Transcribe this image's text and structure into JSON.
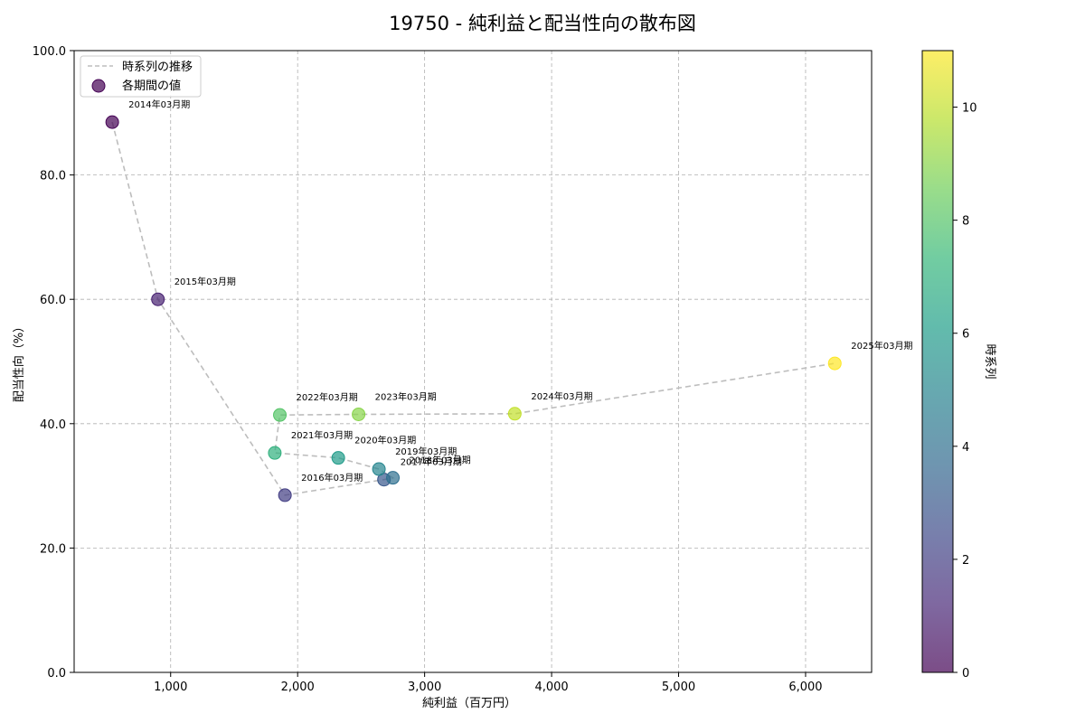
{
  "chart_data": {
    "type": "scatter",
    "title": "19750 - 純利益と配当性向の散布図",
    "xlabel": "純利益（百万円）",
    "ylabel": "配当性向（%）",
    "xlim": [
      240,
      6520
    ],
    "ylim": [
      0,
      100
    ],
    "x_ticks": [
      1000,
      2000,
      3000,
      4000,
      5000,
      6000
    ],
    "x_tick_labels": [
      "1,000",
      "2,000",
      "3,000",
      "4,000",
      "5,000",
      "6,000"
    ],
    "y_ticks": [
      0,
      20,
      40,
      60,
      80,
      100
    ],
    "y_tick_labels": [
      "0.0",
      "20.0",
      "40.0",
      "60.0",
      "80.0",
      "100.0"
    ],
    "grid": true,
    "legend": {
      "placement": "top-left",
      "entries": [
        "時系列の推移",
        "各期間の値"
      ]
    },
    "colorbar": {
      "label": "時系列",
      "min": 0,
      "max": 11,
      "ticks": [
        0,
        2,
        4,
        6,
        8,
        10
      ],
      "tick_labels": [
        "0",
        "2",
        "4",
        "6",
        "8",
        "10"
      ]
    },
    "points": [
      {
        "label": "2014年03月期",
        "x": 540,
        "y": 88.5,
        "t": 0
      },
      {
        "label": "2015年03月期",
        "x": 900,
        "y": 60.0,
        "t": 1
      },
      {
        "label": "2016年03月期",
        "x": 1900,
        "y": 28.5,
        "t": 2
      },
      {
        "label": "2017年03月期",
        "x": 2680,
        "y": 31.0,
        "t": 3
      },
      {
        "label": "2018年03月期",
        "x": 2750,
        "y": 31.3,
        "t": 4
      },
      {
        "label": "2019年03月期",
        "x": 2640,
        "y": 32.7,
        "t": 5
      },
      {
        "label": "2020年03月期",
        "x": 2320,
        "y": 34.5,
        "t": 6
      },
      {
        "label": "2021年03月期",
        "x": 1820,
        "y": 35.3,
        "t": 7
      },
      {
        "label": "2022年03月期",
        "x": 1860,
        "y": 41.4,
        "t": 8
      },
      {
        "label": "2023年03月期",
        "x": 2480,
        "y": 41.5,
        "t": 9
      },
      {
        "label": "2024年03月期",
        "x": 3710,
        "y": 41.6,
        "t": 10
      },
      {
        "label": "2025年03月期",
        "x": 6230,
        "y": 49.7,
        "t": 11
      }
    ],
    "colors": {
      "trend_line": "#bdbdbd",
      "viridis": [
        "#440154",
        "#482878",
        "#3e4989",
        "#31688e",
        "#26828e",
        "#1f9e89",
        "#35b779",
        "#6ece58",
        "#b5de2b",
        "#fde725"
      ]
    }
  }
}
